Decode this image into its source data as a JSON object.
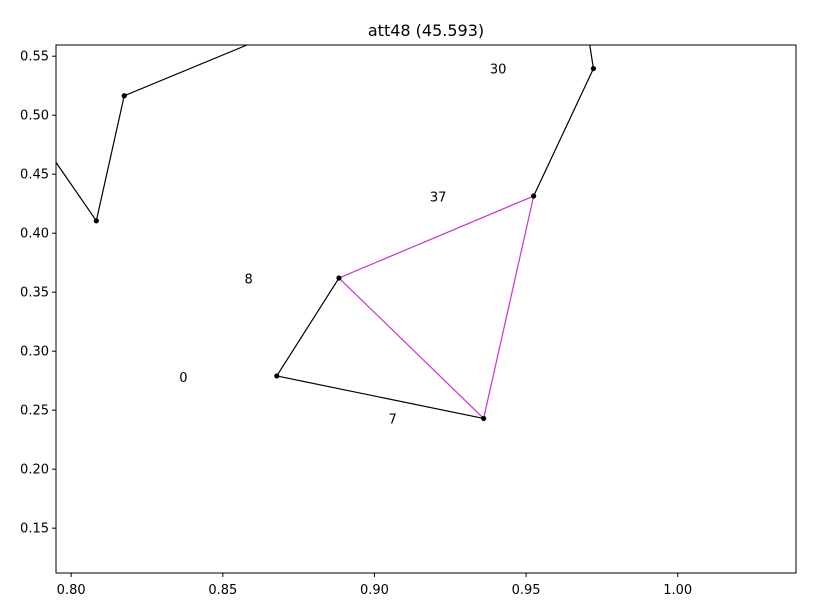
{
  "chart_data": {
    "type": "line",
    "title": "att48 (45.593)",
    "xlabel": "",
    "ylabel": "",
    "xlim": [
      0.795,
      1.039
    ],
    "ylim": [
      0.112,
      0.5595
    ],
    "xticks": [
      {
        "value": 0.8,
        "label": "0.80"
      },
      {
        "value": 0.85,
        "label": "0.85"
      },
      {
        "value": 0.9,
        "label": "0.90"
      },
      {
        "value": 0.95,
        "label": "0.95"
      },
      {
        "value": 1.0,
        "label": "1.00"
      }
    ],
    "yticks": [
      {
        "value": 0.15,
        "label": "0.15"
      },
      {
        "value": 0.2,
        "label": "0.20"
      },
      {
        "value": 0.25,
        "label": "0.25"
      },
      {
        "value": 0.3,
        "label": "0.30"
      },
      {
        "value": 0.35,
        "label": "0.35"
      },
      {
        "value": 0.4,
        "label": "0.40"
      },
      {
        "value": 0.45,
        "label": "0.45"
      },
      {
        "value": 0.5,
        "label": "0.50"
      },
      {
        "value": 0.55,
        "label": "0.55"
      }
    ],
    "grid": false,
    "edge_colors": {
      "tour": "#000000",
      "highlight": "#cc33cc"
    },
    "points": [
      {
        "x": 0.8083,
        "y": 0.4105
      },
      {
        "x": 0.8175,
        "y": 0.5165
      },
      {
        "x": 0.8678,
        "y": 0.279
      },
      {
        "x": 0.8883,
        "y": 0.362
      },
      {
        "x": 0.936,
        "y": 0.243
      },
      {
        "x": 0.9525,
        "y": 0.4315
      },
      {
        "x": 0.9722,
        "y": 0.5395
      }
    ],
    "tour_edges": [
      {
        "x1": 0.795,
        "y1": 0.46,
        "x2": 0.8083,
        "y2": 0.4105
      },
      {
        "x1": 0.8083,
        "y1": 0.4105,
        "x2": 0.8175,
        "y2": 0.5165
      },
      {
        "x1": 0.8175,
        "y1": 0.5165,
        "x2": 0.858,
        "y2": 0.5595
      },
      {
        "x1": 0.8883,
        "y1": 0.362,
        "x2": 0.8678,
        "y2": 0.279
      },
      {
        "x1": 0.8678,
        "y1": 0.279,
        "x2": 0.936,
        "y2": 0.243
      },
      {
        "x1": 0.9525,
        "y1": 0.4315,
        "x2": 0.9722,
        "y2": 0.5395
      },
      {
        "x1": 0.9722,
        "y1": 0.5395,
        "x2": 0.971,
        "y2": 0.5595
      }
    ],
    "highlight_edges": [
      {
        "x1": 0.8883,
        "y1": 0.362,
        "x2": 0.9525,
        "y2": 0.4315
      },
      {
        "x1": 0.9525,
        "y1": 0.4315,
        "x2": 0.936,
        "y2": 0.243
      },
      {
        "x1": 0.936,
        "y1": 0.243,
        "x2": 0.8883,
        "y2": 0.362
      }
    ],
    "annotations": [
      {
        "text": "30",
        "x": 0.9408,
        "y": 0.539
      },
      {
        "text": "37",
        "x": 0.921,
        "y": 0.4305
      },
      {
        "text": "8",
        "x": 0.8585,
        "y": 0.361
      },
      {
        "text": "0",
        "x": 0.837,
        "y": 0.2775
      },
      {
        "text": "7",
        "x": 0.906,
        "y": 0.2425
      }
    ]
  }
}
